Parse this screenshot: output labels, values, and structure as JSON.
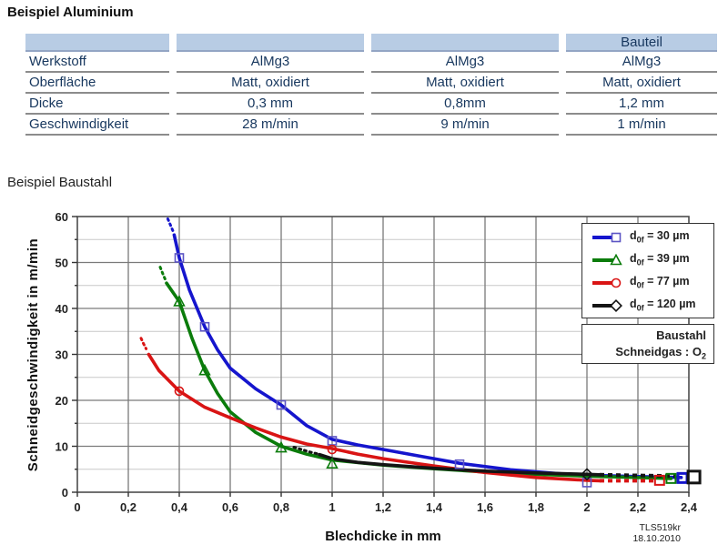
{
  "titles": {
    "aluminium": "Beispiel Aluminium",
    "baustahl": "Beispiel Baustahl"
  },
  "table": {
    "header_labels": [
      "",
      "",
      "",
      "Bauteil"
    ],
    "rows": [
      {
        "label": "Werkstoff",
        "values": [
          "AlMg3",
          "AlMg3",
          "AlMg3"
        ]
      },
      {
        "label": "Oberfläche",
        "values": [
          "Matt, oxidiert",
          "Matt, oxidiert",
          "Matt, oxidiert"
        ]
      },
      {
        "label": "Dicke",
        "values": [
          "0,3 mm",
          "0,8mm",
          "1,2 mm"
        ]
      },
      {
        "label": "Geschwindigkeit",
        "values": [
          "28 m/min",
          "9 m/min",
          "1 m/min"
        ]
      }
    ],
    "colors": {
      "header_bg": "#b8cce4",
      "text": "#17375e"
    }
  },
  "chart_data": {
    "type": "line",
    "title": "",
    "xlabel": "Blechdicke in mm",
    "ylabel": "Schneidgeschwindigkeit  in m/min",
    "xlim": [
      0,
      2.4
    ],
    "ylim": [
      0,
      60
    ],
    "x_ticks": [
      0,
      0.2,
      0.4,
      0.6,
      0.8,
      1,
      1.2,
      1.4,
      1.6,
      1.8,
      2,
      2.2,
      2.4
    ],
    "x_tick_labels": [
      "0",
      "0,2",
      "0,4",
      "0,6",
      "0,8",
      "1",
      "1,2",
      "1,4",
      "1,6",
      "1,8",
      "2",
      "2,2",
      "2,4"
    ],
    "y_ticks": [
      0,
      10,
      20,
      30,
      40,
      50,
      60
    ],
    "y_minor_step": 5,
    "grid": true,
    "legend_position": "top-right",
    "annotation": {
      "line1": "Baustahl",
      "line2_text": "Schneidgas : O",
      "line2_sub": "2"
    },
    "watermark": [
      "TLS519kr",
      "18.10.2010"
    ],
    "series": [
      {
        "label_prefix": "d",
        "label_sub": "0f",
        "label_rest": " = 30 µm",
        "color": "#1515cd",
        "marker": "square",
        "marker_color": "#5c55c4",
        "lead": [
          [
            0.355,
            59.5
          ],
          [
            0.365,
            58.2
          ],
          [
            0.375,
            56.9
          ]
        ],
        "points": [
          [
            0.38,
            56
          ],
          [
            0.4,
            51
          ],
          [
            0.44,
            44
          ],
          [
            0.5,
            36
          ],
          [
            0.55,
            31
          ],
          [
            0.6,
            27
          ],
          [
            0.7,
            22.5
          ],
          [
            0.8,
            19
          ],
          [
            0.9,
            14.5
          ],
          [
            1.0,
            11.5
          ],
          [
            1.1,
            10.3
          ],
          [
            1.2,
            9.3
          ],
          [
            1.35,
            7.8
          ],
          [
            1.5,
            6.3
          ],
          [
            1.7,
            4.9
          ],
          [
            1.9,
            4.0
          ],
          [
            2.0,
            3.7
          ],
          [
            2.2,
            3.4
          ],
          [
            2.37,
            3.2
          ]
        ],
        "markers": [
          [
            0.4,
            51
          ],
          [
            0.5,
            36
          ],
          [
            0.8,
            19
          ],
          [
            1.0,
            11.2
          ],
          [
            1.5,
            6.1
          ],
          [
            2.0,
            2.1
          ]
        ],
        "end_marker": {
          "x": 2.375,
          "y": 3.1,
          "size": 10,
          "stroke_width": 3
        }
      },
      {
        "label_prefix": "d",
        "label_sub": "0f",
        "label_rest": " = 39 µm",
        "color": "#0b7c0b",
        "marker": "triangle",
        "marker_color": "#0b7c0b",
        "lead": [
          [
            0.325,
            49
          ],
          [
            0.335,
            47.6
          ],
          [
            0.345,
            46.3
          ]
        ],
        "points": [
          [
            0.35,
            45.5
          ],
          [
            0.4,
            41.5
          ],
          [
            0.45,
            33.5
          ],
          [
            0.5,
            26.5
          ],
          [
            0.55,
            21.5
          ],
          [
            0.6,
            17.5
          ],
          [
            0.7,
            13
          ],
          [
            0.8,
            10
          ],
          [
            0.9,
            8.3
          ],
          [
            1.0,
            7
          ],
          [
            1.2,
            5.9
          ],
          [
            1.4,
            5.1
          ],
          [
            1.6,
            4.4
          ],
          [
            1.8,
            3.9
          ],
          [
            2.0,
            3.5
          ],
          [
            2.2,
            3.2
          ],
          [
            2.33,
            3.0
          ]
        ],
        "markers": [
          [
            0.4,
            41.5
          ],
          [
            0.5,
            26.5
          ],
          [
            0.8,
            9.7
          ],
          [
            1.0,
            6.2
          ]
        ],
        "end_marker": {
          "x": 2.33,
          "y": 3.0,
          "size": 10,
          "stroke_width": 2
        }
      },
      {
        "label_prefix": "d",
        "label_sub": "0f",
        "label_rest": " = 77 µm",
        "color": "#d91414",
        "marker": "circle",
        "marker_color": "#d91414",
        "lead": [
          [
            0.25,
            33.5
          ],
          [
            0.26,
            32.3
          ],
          [
            0.27,
            31.2
          ]
        ],
        "points": [
          [
            0.28,
            30
          ],
          [
            0.32,
            26.5
          ],
          [
            0.4,
            22
          ],
          [
            0.5,
            18.5
          ],
          [
            0.6,
            16.2
          ],
          [
            0.7,
            14
          ],
          [
            0.8,
            12
          ],
          [
            0.9,
            10.5
          ],
          [
            1.0,
            9.5
          ],
          [
            1.1,
            8.3
          ],
          [
            1.2,
            7.3
          ],
          [
            1.4,
            5.7
          ],
          [
            1.6,
            4.3
          ],
          [
            1.8,
            3.2
          ],
          [
            2.0,
            2.6
          ],
          [
            2.05,
            2.5
          ]
        ],
        "tail": [
          [
            2.05,
            2.5
          ],
          [
            2.27,
            2.5
          ]
        ],
        "markers": [
          [
            0.4,
            22
          ],
          [
            1.0,
            9.3
          ]
        ],
        "end_marker": {
          "x": 2.285,
          "y": 2.6,
          "size": 10,
          "stroke_width": 2
        }
      },
      {
        "label_prefix": "d",
        "label_sub": "0f",
        "label_rest": " = 120 µm",
        "color": "#141414",
        "marker": "diamond",
        "marker_color": "#141414",
        "lead": [
          [
            0.85,
            9.8
          ],
          [
            0.88,
            9.3
          ],
          [
            0.91,
            8.8
          ],
          [
            0.94,
            8.4
          ]
        ],
        "points": [
          [
            0.95,
            8.2
          ],
          [
            1.0,
            7.3
          ],
          [
            1.1,
            6.5
          ],
          [
            1.2,
            6.0
          ],
          [
            1.4,
            5.2
          ],
          [
            1.6,
            4.6
          ],
          [
            1.8,
            4.2
          ],
          [
            2.0,
            3.9
          ],
          [
            2.05,
            3.8
          ]
        ],
        "tail": [
          [
            2.05,
            3.8
          ],
          [
            2.35,
            3.5
          ]
        ],
        "markers": [
          [
            2.0,
            3.9
          ]
        ],
        "end_marker": {
          "x": 2.42,
          "y": 3.3,
          "size": 13,
          "stroke_width": 3
        }
      }
    ]
  }
}
